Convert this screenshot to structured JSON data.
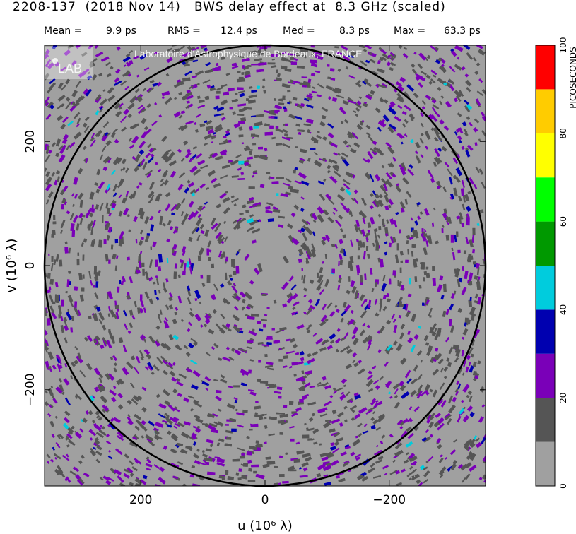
{
  "header": {
    "title": "2208-137  (2018 Nov 14)   BWS delay effect at  8.3 GHz (scaled)",
    "stats": [
      {
        "label": "Mean =",
        "value": "9.9 ps"
      },
      {
        "label": "RMS =",
        "value": "12.4 ps"
      },
      {
        "label": "Med =",
        "value": "8.3 ps"
      },
      {
        "label": "Max =",
        "value": "63.3 ps"
      }
    ]
  },
  "watermark": {
    "text": "Laboratoire d'Astrophysique de Bordeaux, FRANCE",
    "logo_text": "LAB"
  },
  "chart_data": {
    "type": "heatmap",
    "title": "",
    "xlabel": "u  (10⁶ λ)",
    "ylabel": "v  (10⁶ λ)",
    "xlim": [
      355,
      -355
    ],
    "ylim": [
      -355,
      355
    ],
    "x_ticks": [
      200,
      0,
      -200
    ],
    "x_tick_labels": [
      "200",
      "0",
      "−200"
    ],
    "y_ticks": [
      200,
      0,
      -200
    ],
    "y_tick_labels": [
      "200",
      "0",
      "−200"
    ],
    "circle_radius": 355,
    "colorbar": {
      "label": "PICOSECONDS",
      "range": [
        0,
        100
      ],
      "tick_values": [
        0,
        20,
        40,
        60,
        80,
        100
      ],
      "tick_labels": [
        "0",
        "20",
        "40",
        "60",
        "80",
        "100"
      ],
      "bins": [
        {
          "from": 0,
          "to": 10,
          "color": "#a0a0a0"
        },
        {
          "from": 10,
          "to": 20,
          "color": "#555555"
        },
        {
          "from": 20,
          "to": 30,
          "color": "#7a00b8"
        },
        {
          "from": 30,
          "to": 40,
          "color": "#0000b0"
        },
        {
          "from": 40,
          "to": 50,
          "color": "#00ccdd"
        },
        {
          "from": 50,
          "to": 60,
          "color": "#009900"
        },
        {
          "from": 60,
          "to": 70,
          "color": "#00ff00"
        },
        {
          "from": 70,
          "to": 80,
          "color": "#ffff00"
        },
        {
          "from": 80,
          "to": 90,
          "color": "#ffcc00"
        },
        {
          "from": 90,
          "to": 100,
          "color": "#ff0000"
        }
      ]
    }
  }
}
